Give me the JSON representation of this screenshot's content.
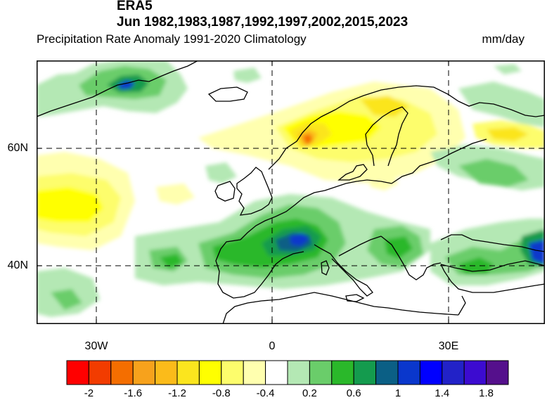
{
  "header": {
    "dataset": "ERA5",
    "period": "Jun 1982,1983,1987,1992,1997,2002,2015,2023",
    "left_string": "Precipitation Rate Anomaly  1991-2020 Climatology",
    "units": "mm/day"
  },
  "axes": {
    "lat_labels": [
      "60N",
      "40N"
    ],
    "lon_labels": [
      "30W",
      "0",
      "30E"
    ]
  },
  "colorbar": {
    "colors": [
      "#ff0000",
      "#f23c00",
      "#f46e00",
      "#f7a21c",
      "#fbbb1a",
      "#fbe51e",
      "#ffff00",
      "#fdfd6c",
      "#ffffaf",
      "#ffffff",
      "#b4e8b4",
      "#6acd6a",
      "#2ab82a",
      "#149b4e",
      "#0b5f85",
      "#0a37cc",
      "#0000ff",
      "#2222c8",
      "#3c0bd0",
      "#55108c"
    ],
    "labels": [
      "-2",
      "-1.6",
      "-1.2",
      "-0.8",
      "-0.4",
      "0.2",
      "0.6",
      "1",
      "1.4",
      "1.8"
    ]
  }
}
